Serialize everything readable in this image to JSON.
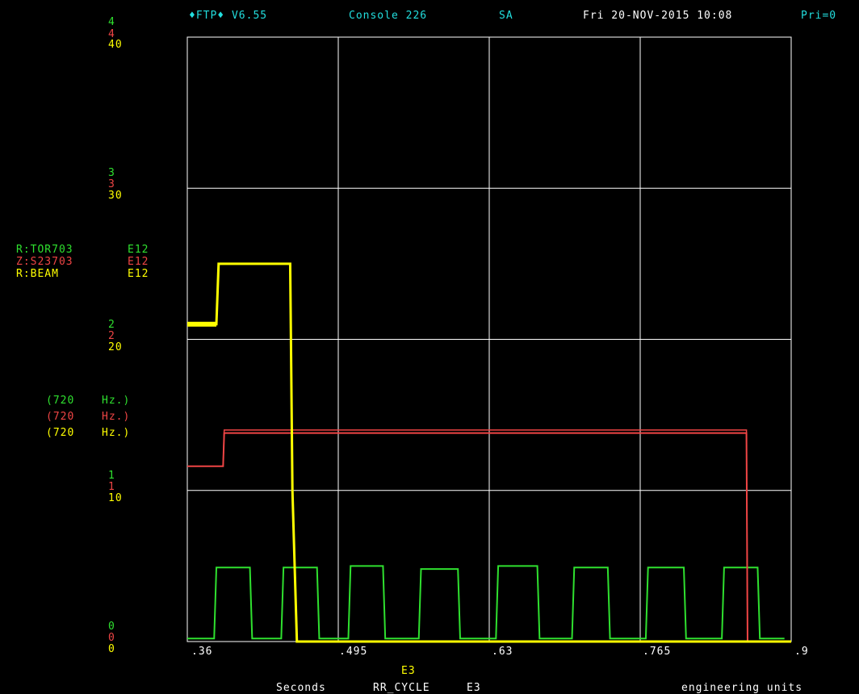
{
  "header": {
    "app": "♦FTP♦ V6.55",
    "console": "Console 226",
    "node": "SA",
    "datetime": "Fri 20-NOV-2015 10:08",
    "priority": "Pri=0"
  },
  "colors": {
    "green": "#2fe02f",
    "red": "#ef4545",
    "yellow": "#ffff00",
    "cyan": "#22dede",
    "grid": "#ffffff"
  },
  "y_ticks": [
    {
      "green": "4",
      "red": "4",
      "yellow": "40"
    },
    {
      "green": "3",
      "red": "3",
      "yellow": "30"
    },
    {
      "green": "2",
      "red": "2",
      "yellow": "20"
    },
    {
      "green": "1",
      "red": "1",
      "yellow": "10"
    },
    {
      "green": "0",
      "red": "0",
      "yellow": "0"
    }
  ],
  "legend": [
    {
      "name": "R:TOR703",
      "scale": "E12",
      "rate": "(720",
      "unit": "Hz.)"
    },
    {
      "name": "Z:S23703",
      "scale": "E12",
      "rate": "(720",
      "unit": "Hz.)"
    },
    {
      "name": "R:BEAM",
      "scale": "E12",
      "rate": "(720",
      "unit": "Hz.)"
    }
  ],
  "x_ticks": [
    ".36",
    ".495",
    ".63",
    ".765",
    ".9"
  ],
  "footer": {
    "exponent": "E3",
    "xlabel": "Seconds",
    "event": "RR_CYCLE",
    "event_exp": "E3",
    "units": "engineering units"
  },
  "chart_data": {
    "type": "line",
    "xlim": [
      360,
      900
    ],
    "ylim": [
      0,
      4
    ],
    "grid": true,
    "series": [
      {
        "name": "R:TOR703",
        "color": "#2fe02f",
        "x": [
          360,
          384,
          386,
          416,
          418,
          444,
          446,
          476,
          478,
          504,
          506,
          535,
          537,
          567,
          569,
          602,
          604,
          636,
          638,
          673,
          675,
          704,
          706,
          736,
          738,
          770,
          772,
          804,
          806,
          838,
          840,
          870,
          872,
          892,
          894
        ],
        "y": [
          0.02,
          0.02,
          0.49,
          0.49,
          0.02,
          0.02,
          0.49,
          0.49,
          0.02,
          0.02,
          0.5,
          0.5,
          0.02,
          0.02,
          0.48,
          0.48,
          0.02,
          0.02,
          0.5,
          0.5,
          0.02,
          0.02,
          0.49,
          0.49,
          0.02,
          0.02,
          0.49,
          0.49,
          0.02,
          0.02,
          0.49,
          0.49,
          0.02,
          0.02,
          0.02
        ]
      },
      {
        "name": "Z:S23703",
        "color": "#ef4545",
        "x": [
          360,
          392,
          393,
          860,
          861,
          900
        ],
        "y": [
          1.16,
          1.16,
          1.38,
          1.38,
          0.0,
          0.0
        ],
        "x2": [
          360,
          392,
          393,
          860,
          861,
          900
        ],
        "y2": [
          1.16,
          1.16,
          1.4,
          1.4,
          0.0,
          0.0
        ]
      },
      {
        "name": "R:BEAM",
        "color": "#ffff00",
        "x": [
          360,
          386,
          388,
          452,
          454,
          458,
          460,
          900
        ],
        "y": [
          2.1,
          2.1,
          2.5,
          2.5,
          1.0,
          0.0,
          0.0,
          0.0
        ]
      }
    ]
  }
}
